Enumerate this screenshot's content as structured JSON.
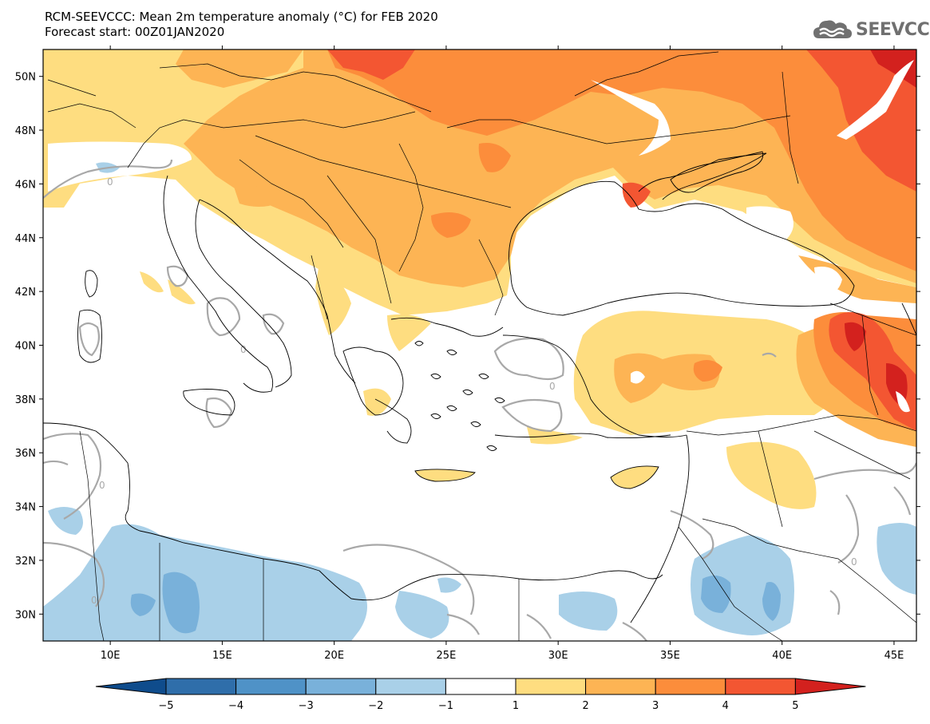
{
  "title": {
    "line1": "RCM-SEEVCCC: Mean 2m temperature anomaly (°C) for FEB 2020",
    "line2": "Forecast start: 00Z01JAN2020"
  },
  "logo": {
    "text": "SEEVCCC",
    "icon": "cloud-icon"
  },
  "map": {
    "lon_range": [
      7,
      46
    ],
    "lat_range": [
      29,
      51
    ],
    "lat_labels": [
      "50N",
      "48N",
      "46N",
      "44N",
      "42N",
      "40N",
      "38N",
      "36N",
      "34N",
      "32N",
      "30N"
    ],
    "lon_labels": [
      "10E",
      "15E",
      "20E",
      "25E",
      "30E",
      "35E",
      "40E",
      "45E"
    ],
    "contour_label": "0"
  },
  "colorbar": {
    "ticks": [
      "−5",
      "−4",
      "−3",
      "−2",
      "−1",
      "1",
      "2",
      "3",
      "4",
      "5"
    ],
    "colors": [
      "#0f4c8c",
      "#2f6eaa",
      "#4f92c7",
      "#79b1da",
      "#a9d0e8",
      "#ffffff",
      "#fedd80",
      "#fdb454",
      "#fc8d3b",
      "#f35632",
      "#d3211e"
    ],
    "units": "°C"
  }
}
